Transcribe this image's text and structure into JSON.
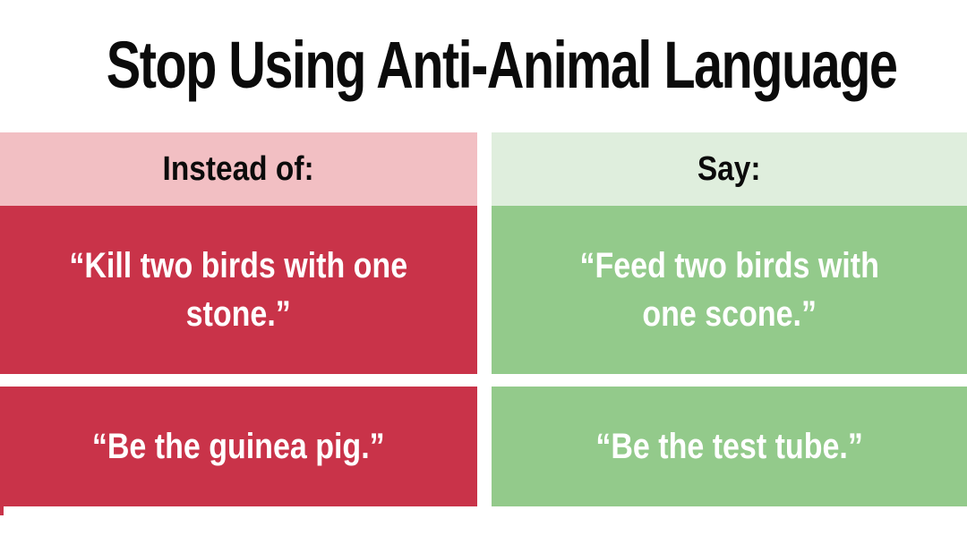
{
  "title": "Stop Using Anti-Animal Language",
  "colors": {
    "title_text": "#0B0B0B",
    "pink_header": "#F2BFC3",
    "green_header": "#DFEEDD",
    "red_cell": "#C93349",
    "green_cell": "#93CA8B",
    "cell_text": "#FFFFFF"
  },
  "table": {
    "instead_header": "Instead of:",
    "say_header": "Say:",
    "rows": [
      {
        "instead": "“Kill two birds with one\nstone.”",
        "say": "“Feed two birds with\none scone.”"
      },
      {
        "instead": "“Be the guinea pig.”",
        "say": "“Be the test tube.”"
      }
    ]
  }
}
